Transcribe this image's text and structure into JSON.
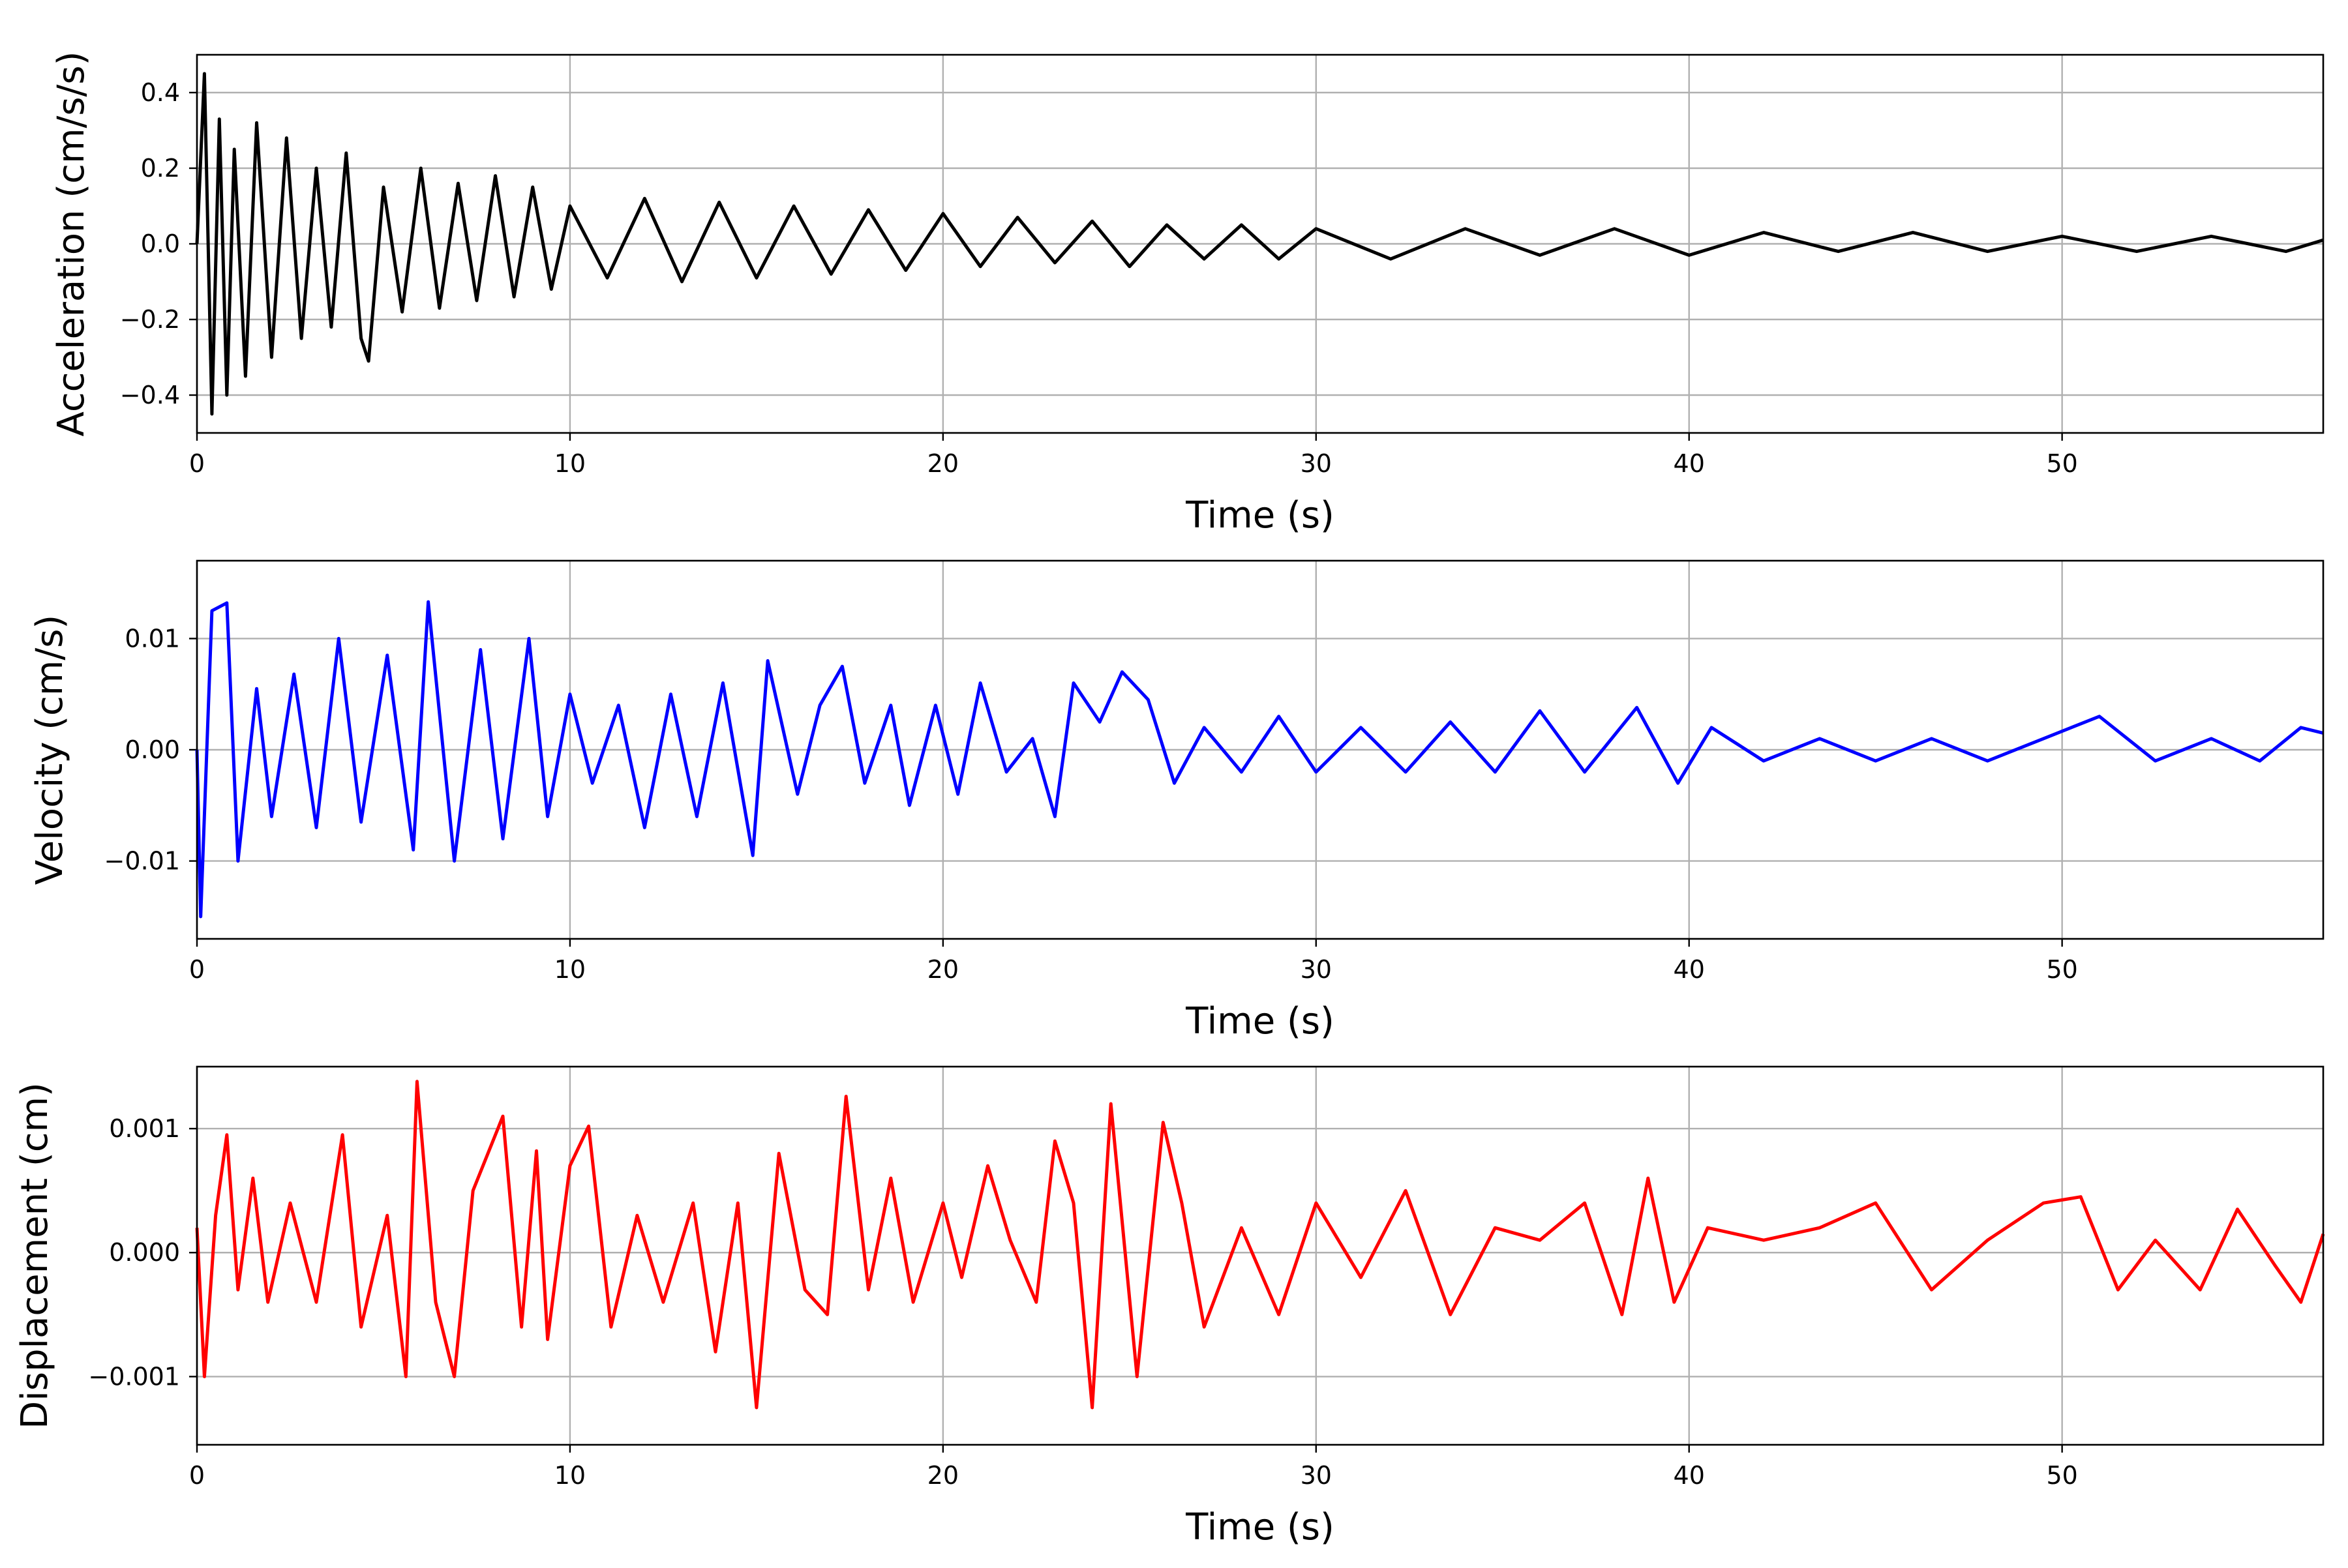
{
  "chart_data": [
    {
      "type": "line",
      "xlabel": "Time (s)",
      "ylabel": "Acceleration (cm/s/s)",
      "xlim": [
        0,
        57
      ],
      "ylim": [
        -0.5,
        0.5
      ],
      "xticks": [
        "0",
        "10",
        "20",
        "30",
        "40",
        "50"
      ],
      "yticks": [
        "−0.4",
        "−0.2",
        "0.0",
        "0.2",
        "0.4"
      ],
      "grid": true,
      "series": [
        {
          "color": "#000000",
          "x": [
            0,
            0.2,
            0.4,
            0.6,
            0.8,
            1.0,
            1.3,
            1.6,
            2.0,
            2.4,
            2.8,
            3.2,
            3.6,
            4.0,
            4.4,
            4.6,
            5.0,
            5.5,
            6.0,
            6.5,
            7.0,
            7.5,
            8.0,
            8.5,
            9.0,
            9.5,
            10.0,
            11.0,
            12.0,
            13.0,
            14.0,
            15.0,
            16.0,
            17.0,
            18.0,
            19.0,
            20.0,
            21.0,
            22.0,
            23.0,
            24.0,
            25.0,
            26.0,
            27.0,
            28.0,
            29.0,
            30.0,
            32.0,
            34.0,
            36.0,
            38.0,
            40.0,
            42.0,
            44.0,
            46.0,
            48.0,
            50.0,
            52.0,
            54.0,
            56.0,
            57.0
          ],
          "y": [
            0.0,
            0.45,
            -0.45,
            0.33,
            -0.4,
            0.25,
            -0.35,
            0.32,
            -0.3,
            0.28,
            -0.25,
            0.2,
            -0.22,
            0.24,
            -0.25,
            -0.31,
            0.15,
            -0.18,
            0.2,
            -0.17,
            0.16,
            -0.15,
            0.18,
            -0.14,
            0.15,
            -0.12,
            0.1,
            -0.09,
            0.12,
            -0.1,
            0.11,
            -0.09,
            0.1,
            -0.08,
            0.09,
            -0.07,
            0.08,
            -0.06,
            0.07,
            -0.05,
            0.06,
            -0.06,
            0.05,
            -0.04,
            0.05,
            -0.04,
            0.04,
            -0.04,
            0.04,
            -0.03,
            0.04,
            -0.03,
            0.03,
            -0.02,
            0.03,
            -0.02,
            0.02,
            -0.02,
            0.02,
            -0.02,
            0.01
          ]
        }
      ]
    },
    {
      "type": "line",
      "xlabel": "Time (s)",
      "ylabel": "Velocity (cm/s)",
      "xlim": [
        0,
        57
      ],
      "ylim": [
        -0.017,
        0.017
      ],
      "xticks": [
        "0",
        "10",
        "20",
        "30",
        "40",
        "50"
      ],
      "yticks": [
        "−0.01",
        "0.00",
        "0.01"
      ],
      "grid": true,
      "series": [
        {
          "color": "#0000ff",
          "x": [
            0,
            0.1,
            0.4,
            0.8,
            1.1,
            1.6,
            2.0,
            2.6,
            3.2,
            3.8,
            4.4,
            5.1,
            5.8,
            6.2,
            6.9,
            7.6,
            8.2,
            8.9,
            9.4,
            10.0,
            10.6,
            11.3,
            12.0,
            12.7,
            13.4,
            14.1,
            14.9,
            15.3,
            16.1,
            16.7,
            17.3,
            17.9,
            18.6,
            19.1,
            19.8,
            20.4,
            21.0,
            21.7,
            22.4,
            23.0,
            23.5,
            24.2,
            24.8,
            25.5,
            26.2,
            27.0,
            28.0,
            29.0,
            30.0,
            31.2,
            32.4,
            33.6,
            34.8,
            36.0,
            37.2,
            38.6,
            39.7,
            40.6,
            42.0,
            43.5,
            45.0,
            46.5,
            48.0,
            49.5,
            51.0,
            52.5,
            54.0,
            55.3,
            56.4,
            57.0
          ],
          "y": [
            0.0,
            -0.015,
            0.0125,
            0.0132,
            -0.01,
            0.0055,
            -0.006,
            0.0068,
            -0.007,
            0.01,
            -0.0065,
            0.0085,
            -0.009,
            0.0133,
            -0.01,
            0.009,
            -0.008,
            0.01,
            -0.006,
            0.005,
            -0.003,
            0.004,
            -0.007,
            0.005,
            -0.006,
            0.006,
            -0.0095,
            0.008,
            -0.004,
            0.004,
            0.0075,
            -0.003,
            0.004,
            -0.005,
            0.004,
            -0.004,
            0.006,
            -0.002,
            0.001,
            -0.006,
            0.006,
            0.0025,
            0.007,
            0.0045,
            -0.003,
            0.002,
            -0.002,
            0.003,
            -0.002,
            0.002,
            -0.002,
            0.0025,
            -0.002,
            0.0035,
            -0.002,
            0.0038,
            -0.003,
            0.002,
            -0.001,
            0.001,
            -0.001,
            0.001,
            -0.001,
            0.001,
            0.003,
            -0.001,
            0.001,
            -0.001,
            0.002,
            0.0015
          ]
        }
      ]
    },
    {
      "type": "line",
      "xlabel": "Time (s)",
      "ylabel": "Displacement (cm)",
      "xlim": [
        0,
        57
      ],
      "ylim": [
        -0.00155,
        0.0015
      ],
      "xticks": [
        "0",
        "10",
        "20",
        "30",
        "40",
        "50"
      ],
      "yticks": [
        "−0.001",
        "0.000",
        "0.001"
      ],
      "grid": true,
      "series": [
        {
          "color": "#ff0000",
          "x": [
            0,
            0.2,
            0.5,
            0.8,
            1.1,
            1.5,
            1.9,
            2.5,
            3.2,
            3.9,
            4.4,
            5.1,
            5.6,
            5.9,
            6.4,
            6.9,
            7.4,
            8.2,
            8.7,
            9.1,
            9.4,
            10.0,
            10.5,
            11.1,
            11.8,
            12.5,
            13.3,
            13.9,
            14.5,
            15.0,
            15.6,
            16.3,
            16.9,
            17.4,
            18.0,
            18.6,
            19.2,
            20.0,
            20.5,
            21.2,
            21.8,
            22.5,
            23.0,
            23.5,
            24.0,
            24.5,
            25.2,
            25.9,
            26.4,
            27.0,
            28.0,
            29.0,
            30.0,
            31.2,
            32.4,
            33.6,
            34.8,
            36.0,
            37.2,
            38.2,
            38.9,
            39.6,
            40.5,
            42.0,
            43.5,
            45.0,
            46.5,
            48.0,
            49.5,
            50.5,
            51.5,
            52.5,
            53.7,
            54.7,
            55.7,
            56.4,
            57.0
          ],
          "y": [
            0.0002,
            -0.001,
            0.0003,
            0.00095,
            -0.0003,
            0.0006,
            -0.0004,
            0.0004,
            -0.0004,
            0.00095,
            -0.0006,
            0.0003,
            -0.001,
            0.00138,
            -0.0004,
            -0.001,
            0.0005,
            0.0011,
            -0.0006,
            0.00082,
            -0.0007,
            0.0007,
            0.00102,
            -0.0006,
            0.0003,
            -0.0004,
            0.0004,
            -0.0008,
            0.0004,
            -0.00125,
            0.0008,
            -0.0003,
            -0.0005,
            0.00126,
            -0.0003,
            0.0006,
            -0.0004,
            0.0004,
            -0.0002,
            0.0007,
            0.0001,
            -0.0004,
            0.0009,
            0.0004,
            -0.00125,
            0.0012,
            -0.001,
            0.00105,
            0.0004,
            -0.0006,
            0.0002,
            -0.0005,
            0.0004,
            -0.0002,
            0.0005,
            -0.0005,
            0.0002,
            0.0001,
            0.0004,
            -0.0005,
            0.0006,
            -0.0004,
            0.0002,
            0.0001,
            0.0002,
            0.0004,
            -0.0003,
            0.0001,
            0.0004,
            0.00045,
            -0.0003,
            0.0001,
            -0.0003,
            0.00035,
            -0.0001,
            -0.0004,
            0.00015
          ]
        }
      ]
    }
  ]
}
